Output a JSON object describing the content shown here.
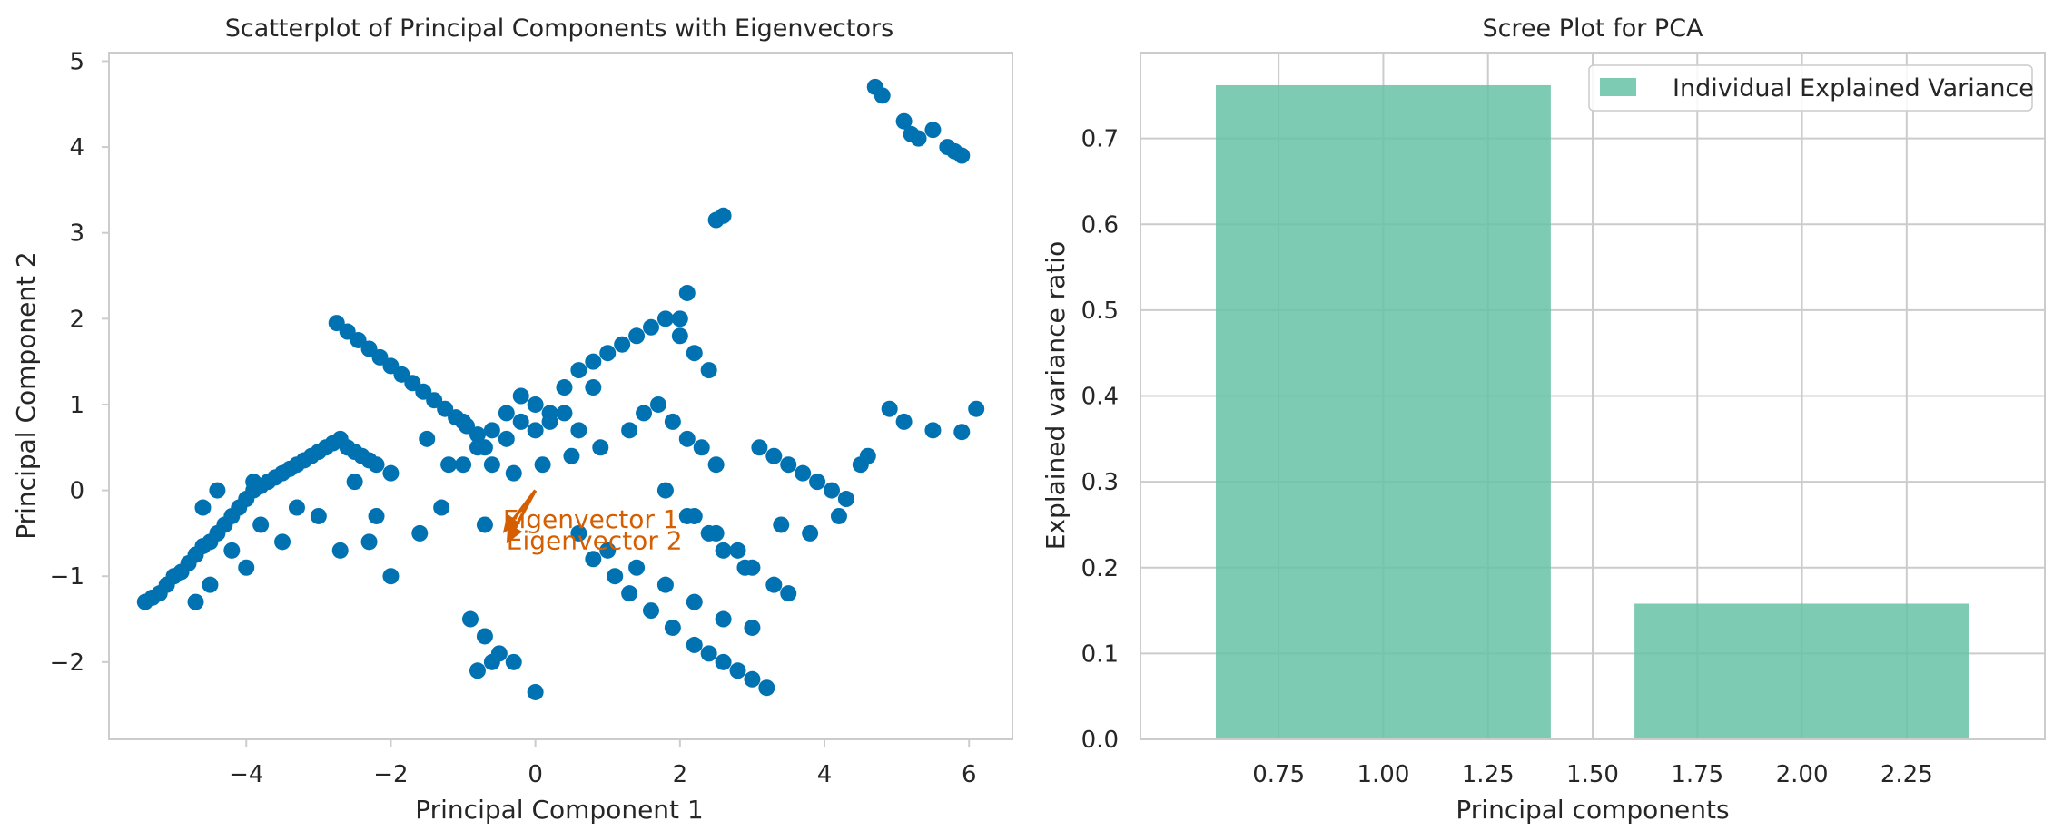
{
  "chart_data": [
    {
      "type": "scatter",
      "title": "Scatterplot of Principal Components with Eigenvectors",
      "xlabel": "Principal Component 1",
      "ylabel": "Principal Component 2",
      "xlim": [
        -5.9,
        6.6
      ],
      "ylim": [
        -2.9,
        5.1
      ],
      "xticks": [
        -4,
        -2,
        0,
        2,
        4,
        6
      ],
      "yticks": [
        -2,
        -1,
        0,
        1,
        2,
        3,
        4,
        5
      ],
      "grid": false,
      "point_color": "#0072b2",
      "series": [
        {
          "x": [
            -5.4,
            -5.3,
            -5.2,
            -5.1,
            -5.0,
            -4.9,
            -4.8,
            -4.7,
            -4.6,
            -4.5,
            -4.4,
            -4.3,
            -4.2,
            -4.1,
            -4.0,
            -3.9,
            -3.8,
            -3.7,
            -3.6,
            -3.5,
            -3.4,
            -3.3,
            -3.2,
            -3.1,
            -3.0,
            -2.9,
            -2.8,
            -2.7,
            -2.6,
            -2.5,
            -2.4,
            -2.3,
            -2.2,
            -2.75,
            -2.6,
            -2.45,
            -2.3,
            -2.15,
            -2.0,
            -1.85,
            -1.7,
            -1.55,
            -1.4,
            -1.25,
            -1.1,
            -0.95,
            -0.8,
            -5.0,
            -4.7,
            -4.5,
            -4.2,
            -4.0,
            -3.8,
            -3.5,
            -3.3,
            -3.0,
            -2.5,
            -2.2,
            -2.0,
            -1.5,
            -1.2,
            -1.0,
            -0.8,
            -0.6,
            -0.4,
            -0.2,
            0.0,
            0.2,
            0.4,
            0.6,
            0.8,
            -4.4,
            -4.6,
            -3.9,
            -2.7,
            -2.0,
            -1.6,
            -2.3,
            -1.3,
            -0.7,
            -1.0,
            -0.7,
            -0.4,
            -0.2,
            0.0,
            0.2,
            0.4,
            0.6,
            0.8,
            1.0,
            1.2,
            1.4,
            1.6,
            1.8,
            2.0,
            2.2,
            2.4,
            -0.6,
            -0.3,
            0.1,
            0.5,
            0.9,
            1.3,
            1.5,
            1.7,
            1.9,
            2.1,
            2.3,
            2.5,
            0.6,
            1.0,
            1.4,
            1.8,
            2.2,
            2.6,
            3.0,
            0.8,
            1.1,
            1.3,
            1.6,
            1.9,
            2.2,
            2.4,
            2.6,
            2.8,
            3.0,
            3.2,
            3.1,
            3.3,
            3.5,
            3.7,
            3.9,
            4.1,
            4.3,
            4.5,
            3.4,
            3.8,
            4.2,
            4.6,
            -0.9,
            -0.7,
            -0.5,
            -0.3,
            0.0,
            -0.8,
            -0.6,
            2.2,
            2.5,
            2.8,
            3.0,
            3.3,
            3.5,
            1.8,
            2.1,
            2.4,
            2.6,
            2.9,
            4.7,
            4.8,
            5.1,
            5.2,
            5.3,
            5.5,
            5.7,
            5.8,
            5.9,
            4.9,
            5.1,
            5.5,
            5.9,
            6.1,
            2.5,
            2.6,
            2.1,
            2.0
          ],
          "y": [
            -1.3,
            -1.25,
            -1.2,
            -1.1,
            -1.0,
            -0.95,
            -0.85,
            -0.75,
            -0.65,
            -0.6,
            -0.5,
            -0.4,
            -0.3,
            -0.2,
            -0.1,
            0.0,
            0.05,
            0.1,
            0.15,
            0.2,
            0.25,
            0.3,
            0.35,
            0.4,
            0.45,
            0.5,
            0.55,
            0.6,
            0.5,
            0.45,
            0.4,
            0.35,
            0.3,
            1.95,
            1.85,
            1.75,
            1.65,
            1.55,
            1.45,
            1.35,
            1.25,
            1.15,
            1.05,
            0.95,
            0.85,
            0.75,
            0.65,
            -1.0,
            -1.3,
            -1.1,
            -0.7,
            -0.9,
            -0.4,
            -0.6,
            -0.2,
            -0.3,
            0.1,
            -0.3,
            0.2,
            0.6,
            0.3,
            0.8,
            0.5,
            0.7,
            0.9,
            1.1,
            1.0,
            0.8,
            0.9,
            0.7,
            1.2,
            0.0,
            -0.2,
            0.1,
            -0.7,
            -1.0,
            -0.5,
            -0.6,
            -0.2,
            -0.4,
            0.3,
            0.5,
            0.6,
            0.8,
            0.7,
            0.9,
            1.2,
            1.4,
            1.5,
            1.6,
            1.7,
            1.8,
            1.9,
            2.0,
            1.8,
            1.6,
            1.4,
            0.3,
            0.2,
            0.3,
            0.4,
            0.5,
            0.7,
            0.9,
            1.0,
            0.8,
            0.6,
            0.5,
            0.3,
            -0.5,
            -0.7,
            -0.9,
            -1.1,
            -1.3,
            -1.5,
            -1.6,
            -0.8,
            -1.0,
            -1.2,
            -1.4,
            -1.6,
            -1.8,
            -1.9,
            -2.0,
            -2.1,
            -2.2,
            -2.3,
            0.5,
            0.4,
            0.3,
            0.2,
            0.1,
            0.0,
            -0.1,
            0.3,
            -0.4,
            -0.5,
            -0.3,
            0.4,
            -1.5,
            -1.7,
            -1.9,
            -2.0,
            -2.35,
            -2.1,
            -2.0,
            -0.3,
            -0.5,
            -0.7,
            -0.9,
            -1.1,
            -1.2,
            0.0,
            -0.3,
            -0.5,
            -0.7,
            -0.9,
            4.7,
            4.6,
            4.3,
            4.15,
            4.1,
            4.2,
            4.0,
            3.95,
            3.9,
            0.95,
            0.8,
            0.7,
            0.68,
            0.95,
            3.15,
            3.2,
            2.3,
            2.0
          ]
        }
      ],
      "vectors": [
        {
          "name": "Eigenvector 1",
          "x": -0.45,
          "y": -0.5
        },
        {
          "name": "Eigenvector 2",
          "x": -0.4,
          "y": -0.62
        }
      ],
      "vector_color": "#d55e00"
    },
    {
      "type": "bar",
      "title": "Scree Plot for PCA",
      "xlabel": "Principal components",
      "ylabel": "Explained variance ratio",
      "x": [
        1,
        2
      ],
      "values": [
        0.762,
        0.158
      ],
      "bar_width": 0.8,
      "xlim": [
        0.42,
        2.58
      ],
      "ylim": [
        0.0,
        0.8
      ],
      "xticks": [
        "0.75",
        "1.00",
        "1.25",
        "1.50",
        "1.75",
        "2.00",
        "2.25"
      ],
      "yticks": [
        "0.0",
        "0.1",
        "0.2",
        "0.3",
        "0.4",
        "0.5",
        "0.6",
        "0.7"
      ],
      "grid": true,
      "bar_color": "#66c2a5",
      "legend": {
        "position": "upper right",
        "entries": [
          "Individual Explained Variance"
        ]
      }
    }
  ]
}
